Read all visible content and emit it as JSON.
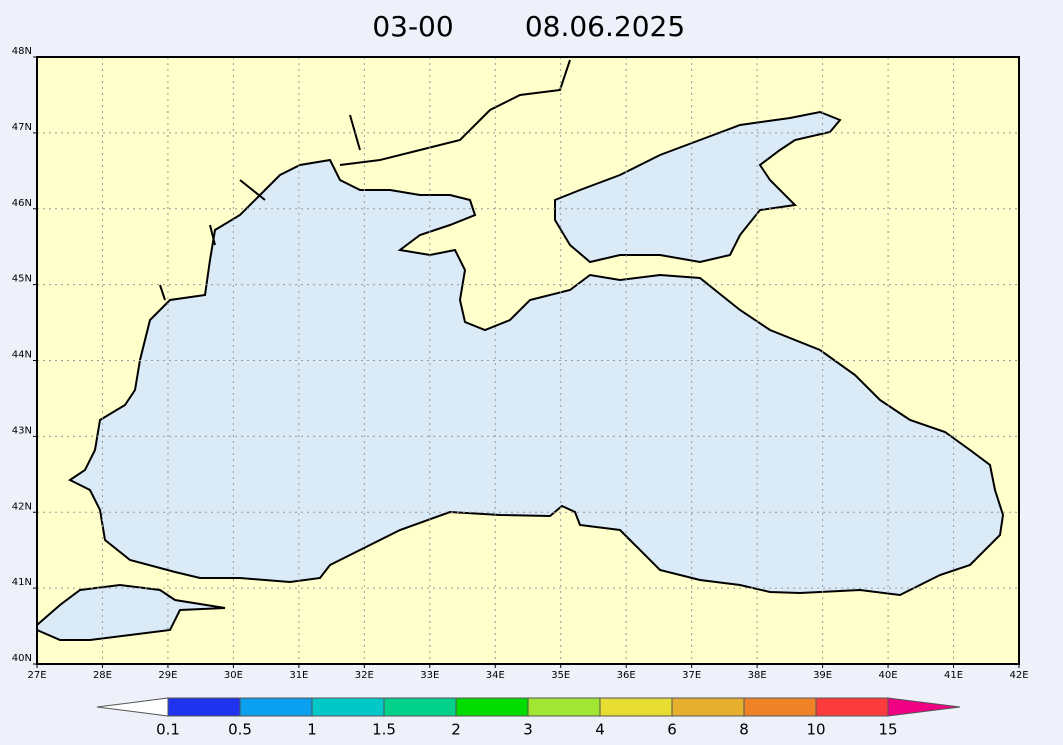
{
  "map": {
    "time": "03-00",
    "date": "08.06.2025",
    "lon_ticks": [
      {
        "value": 27,
        "label": "27E"
      },
      {
        "value": 28,
        "label": "28E"
      },
      {
        "value": 29,
        "label": "29E"
      },
      {
        "value": 30,
        "label": "30E"
      },
      {
        "value": 31,
        "label": "31E"
      },
      {
        "value": 32,
        "label": "32E"
      },
      {
        "value": 33,
        "label": "33E"
      },
      {
        "value": 34,
        "label": "34E"
      },
      {
        "value": 35,
        "label": "35E"
      },
      {
        "value": 36,
        "label": "36E"
      },
      {
        "value": 37,
        "label": "37E"
      },
      {
        "value": 38,
        "label": "38E"
      },
      {
        "value": 39,
        "label": "39E"
      },
      {
        "value": 40,
        "label": "40E"
      },
      {
        "value": 41,
        "label": "41E"
      },
      {
        "value": 42,
        "label": "42E"
      }
    ],
    "lat_ticks": [
      {
        "value": 40,
        "label": "40N"
      },
      {
        "value": 41,
        "label": "41N"
      },
      {
        "value": 42,
        "label": "42N"
      },
      {
        "value": 43,
        "label": "43N"
      },
      {
        "value": 44,
        "label": "44N"
      },
      {
        "value": 45,
        "label": "45N"
      },
      {
        "value": 46,
        "label": "46N"
      },
      {
        "value": 47,
        "label": "47N"
      },
      {
        "value": 48,
        "label": "48N"
      }
    ],
    "lonlim": [
      27,
      42
    ],
    "latlim": [
      40,
      48
    ],
    "grid": true,
    "land_color": "#ffffcc",
    "sea_color": "#dbeaf7",
    "colorbar": {
      "levels": [
        0.1,
        0.5,
        1,
        1.5,
        2,
        3,
        4,
        6,
        8,
        10,
        15
      ],
      "colors": [
        "#ffffff",
        "#1e32f0",
        "#0aa0f0",
        "#00c8c8",
        "#00d28c",
        "#00dc00",
        "#a0e632",
        "#e6dc32",
        "#e6af2d",
        "#f08228",
        "#fa3c3c",
        "#f00082"
      ]
    }
  }
}
